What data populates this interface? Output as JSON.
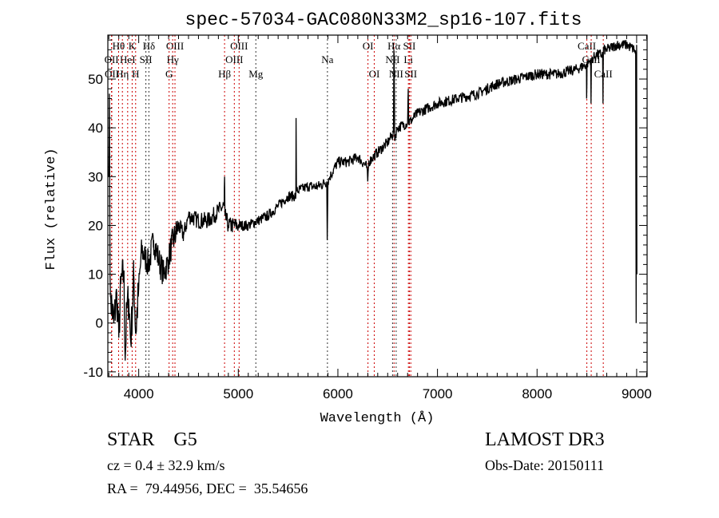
{
  "chart_data": {
    "type": "line",
    "title": "spec-57034-GAC080N33M2_sp16-107.fits",
    "xlabel": "Wavelength (Å)",
    "ylabel": "Flux (relative)",
    "xlim": [
      3690,
      9105
    ],
    "ylim": [
      -11,
      59
    ],
    "xticks": [
      4000,
      5000,
      6000,
      7000,
      8000,
      9000
    ],
    "yticks": [
      -10,
      0,
      10,
      20,
      30,
      40,
      50
    ],
    "grid": false,
    "legend": "none",
    "series": [
      {
        "name": "spectrum",
        "points": [
          [
            3700,
            30
          ],
          [
            3705,
            47
          ],
          [
            3712,
            10
          ],
          [
            3720,
            5
          ],
          [
            3750,
            0
          ],
          [
            3780,
            6
          ],
          [
            3800,
            -3
          ],
          [
            3820,
            8
          ],
          [
            3850,
            10
          ],
          [
            3865,
            -7
          ],
          [
            3880,
            3
          ],
          [
            3900,
            5
          ],
          [
            3920,
            -4
          ],
          [
            3950,
            10
          ],
          [
            3970,
            -2
          ],
          [
            4000,
            7
          ],
          [
            4030,
            15
          ],
          [
            4050,
            14
          ],
          [
            4100,
            12
          ],
          [
            4150,
            17
          ],
          [
            4200,
            13
          ],
          [
            4250,
            10
          ],
          [
            4300,
            13
          ],
          [
            4330,
            16
          ],
          [
            4350,
            17
          ],
          [
            4400,
            20
          ],
          [
            4450,
            18
          ],
          [
            4500,
            22
          ],
          [
            4600,
            21
          ],
          [
            4700,
            21
          ],
          [
            4800,
            23
          ],
          [
            4858,
            24
          ],
          [
            4862,
            30
          ],
          [
            4866,
            22
          ],
          [
            4900,
            20
          ],
          [
            5000,
            20
          ],
          [
            5100,
            20
          ],
          [
            5200,
            21
          ],
          [
            5300,
            22
          ],
          [
            5400,
            24
          ],
          [
            5500,
            26
          ],
          [
            5578,
            26
          ],
          [
            5580,
            42
          ],
          [
            5584,
            27
          ],
          [
            5700,
            28
          ],
          [
            5800,
            28
          ],
          [
            5888,
            29
          ],
          [
            5893,
            17
          ],
          [
            5900,
            29
          ],
          [
            5920,
            30
          ],
          [
            6000,
            33
          ],
          [
            6100,
            33
          ],
          [
            6200,
            34
          ],
          [
            6290,
            32
          ],
          [
            6300,
            29
          ],
          [
            6310,
            33
          ],
          [
            6400,
            35
          ],
          [
            6500,
            37
          ],
          [
            6558,
            39
          ],
          [
            6562,
            56
          ],
          [
            6566,
            52
          ],
          [
            6570,
            38
          ],
          [
            6600,
            40
          ],
          [
            6700,
            41
          ],
          [
            6706,
            48
          ],
          [
            6712,
            41
          ],
          [
            6800,
            43
          ],
          [
            7000,
            45
          ],
          [
            7200,
            46
          ],
          [
            7400,
            47
          ],
          [
            7600,
            49
          ],
          [
            7800,
            50
          ],
          [
            8000,
            51
          ],
          [
            8200,
            51
          ],
          [
            8400,
            52
          ],
          [
            8495,
            53
          ],
          [
            8498,
            46
          ],
          [
            8502,
            53
          ],
          [
            8538,
            54
          ],
          [
            8542,
            45
          ],
          [
            8546,
            54
          ],
          [
            8600,
            55
          ],
          [
            8658,
            55
          ],
          [
            8662,
            45
          ],
          [
            8666,
            56
          ],
          [
            8700,
            56
          ],
          [
            8800,
            57
          ],
          [
            8900,
            57
          ],
          [
            8980,
            56
          ],
          [
            8990,
            55
          ],
          [
            8995,
            0
          ],
          [
            9000,
            57
          ],
          [
            9002,
            10
          ]
        ]
      }
    ],
    "lines": [
      {
        "label": "Hθ",
        "wave": 3798,
        "row": 1
      },
      {
        "label": "K",
        "wave": 3934,
        "row": 1
      },
      {
        "label": "Hδ",
        "wave": 4102,
        "row": 1
      },
      {
        "label": "OIII",
        "wave": 4364,
        "row": 1
      },
      {
        "label": "OIII",
        "wave": 5008,
        "row": 1
      },
      {
        "label": "OI",
        "wave": 6302,
        "row": 1
      },
      {
        "label": "Hα",
        "wave": 6564,
        "row": 1
      },
      {
        "label": "SII",
        "wave": 6718,
        "row": 1
      },
      {
        "label": "CaII",
        "wave": 8500,
        "row": 1
      },
      {
        "label": "OII",
        "wave": 3727,
        "row": 2
      },
      {
        "label": "HeI",
        "wave": 3889,
        "row": 2
      },
      {
        "label": "SII",
        "wave": 4072,
        "row": 2
      },
      {
        "label": "Hγ",
        "wave": 4341,
        "row": 2
      },
      {
        "label": "OIII",
        "wave": 4960,
        "row": 2
      },
      {
        "label": "Na",
        "wave": 5895,
        "row": 2
      },
      {
        "label": "NII",
        "wave": 6549,
        "row": 2
      },
      {
        "label": "Li",
        "wave": 6708,
        "row": 2
      },
      {
        "label": "CaII",
        "wave": 8544,
        "row": 2
      },
      {
        "label": "OII",
        "wave": 3730,
        "row": 3
      },
      {
        "label": "Hη",
        "wave": 3836,
        "row": 3
      },
      {
        "label": "H",
        "wave": 3969,
        "row": 3
      },
      {
        "label": "G",
        "wave": 4305,
        "row": 3
      },
      {
        "label": "Hβ",
        "wave": 4862,
        "row": 3
      },
      {
        "label": "Mg",
        "wave": 5176,
        "row": 3
      },
      {
        "label": "OI",
        "wave": 6365,
        "row": 3
      },
      {
        "label": "NII",
        "wave": 6585,
        "row": 3
      },
      {
        "label": "SII",
        "wave": 6732,
        "row": 3
      },
      {
        "label": "CaII",
        "wave": 8665,
        "row": 3
      }
    ],
    "dotted_colors": {
      "red": "#cc0000",
      "black": "#000000"
    }
  },
  "info": {
    "class": "STAR    G5",
    "cz": "cz = 0.4 ± 32.9 km/s",
    "radec": "RA =  79.44956, DEC =  35.54656",
    "survey": "LAMOST DR3",
    "obsdate": "Obs-Date: 20150111"
  }
}
